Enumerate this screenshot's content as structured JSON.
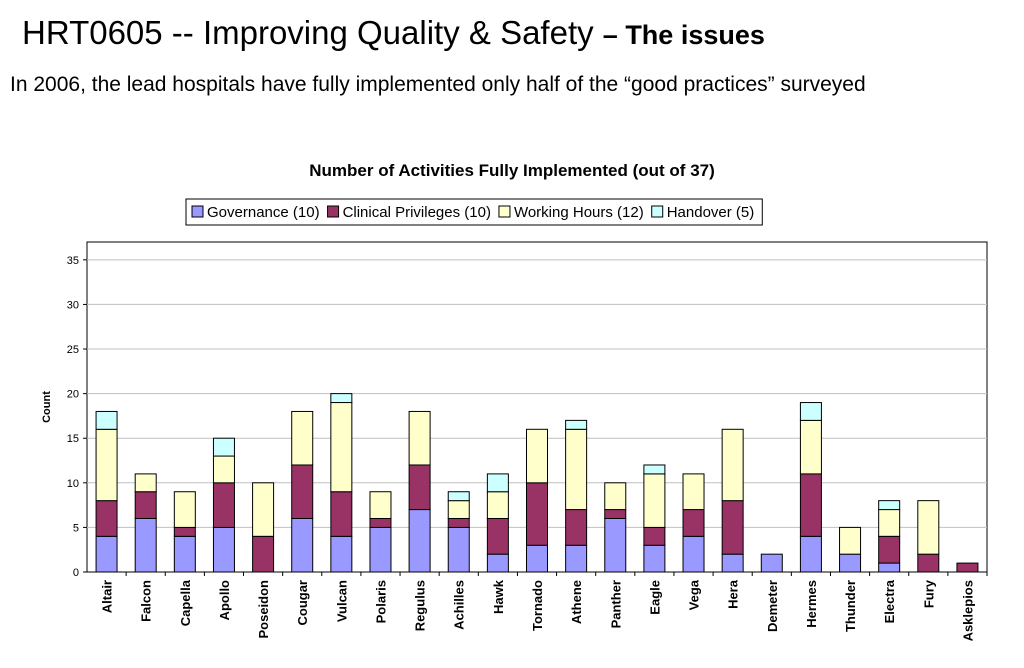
{
  "slide": {
    "title": "HRT0605 -- Improving Quality & Safety",
    "title_suffix": "– The issues",
    "subtitle": "In 2006, the lead hospitals have fully implemented only half of the “good practices” surveyed"
  },
  "chart_data": {
    "type": "bar",
    "stacked": true,
    "title": "Number of Activities Fully Implemented (out of 37)",
    "xlabel": "",
    "ylabel": "Count",
    "ylim": [
      0,
      37
    ],
    "yticks": [
      0,
      5,
      10,
      15,
      20,
      25,
      30,
      35
    ],
    "grid": true,
    "legend_position": "top",
    "categories": [
      "Altair",
      "Falcon",
      "Capella",
      "Apollo",
      "Poseidon",
      "Cougar",
      "Vulcan",
      "Polaris",
      "Regulus",
      "Achilles",
      "Hawk",
      "Tornado",
      "Athene",
      "Panther",
      "Eagle",
      "Vega",
      "Hera",
      "Demeter",
      "Hermes",
      "Thunder",
      "Electra",
      "Fury",
      "Asklepios"
    ],
    "series": [
      {
        "name": "Governance (10)",
        "color": "#9999ff",
        "values": [
          4,
          6,
          4,
          5,
          0,
          6,
          4,
          5,
          7,
          5,
          2,
          3,
          3,
          6,
          3,
          4,
          2,
          2,
          4,
          2,
          1,
          0,
          0
        ]
      },
      {
        "name": "Clinical Privileges (10)",
        "color": "#993366",
        "values": [
          4,
          3,
          1,
          5,
          4,
          6,
          5,
          1,
          5,
          1,
          4,
          7,
          4,
          1,
          2,
          3,
          6,
          0,
          7,
          0,
          3,
          2,
          1
        ]
      },
      {
        "name": "Working Hours (12)",
        "color": "#ffffcc",
        "values": [
          8,
          2,
          4,
          3,
          6,
          6,
          10,
          3,
          6,
          2,
          3,
          6,
          9,
          3,
          6,
          4,
          8,
          0,
          6,
          3,
          3,
          6,
          0
        ]
      },
      {
        "name": "Handover (5)",
        "color": "#ccffff",
        "values": [
          2,
          0,
          0,
          2,
          0,
          0,
          1,
          0,
          0,
          1,
          2,
          0,
          1,
          0,
          1,
          0,
          0,
          0,
          2,
          0,
          1,
          0,
          0
        ]
      }
    ]
  }
}
